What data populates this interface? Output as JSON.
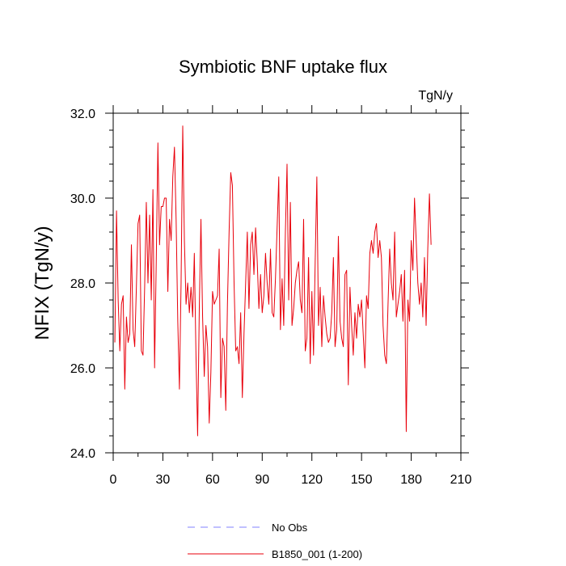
{
  "chart_data": {
    "type": "line",
    "title": "Symbiotic BNF uptake flux",
    "units": "TgN/y",
    "xlabel": "",
    "ylabel": "NFIX  (TgN/y)",
    "xlim": [
      0,
      210
    ],
    "ylim": [
      24.0,
      32.0
    ],
    "xticks": [
      0,
      30,
      60,
      90,
      120,
      150,
      180,
      210
    ],
    "xtick_labels": [
      "0",
      "30",
      "60",
      "90",
      "120",
      "150",
      "180",
      "210"
    ],
    "yticks": [
      24.0,
      26.0,
      28.0,
      30.0,
      32.0
    ],
    "ytick_labels": [
      "24.0",
      "26.0",
      "28.0",
      "30.0",
      "32.0"
    ],
    "grid": false,
    "legend_position": "bottom",
    "series": [
      {
        "name": "No Obs",
        "color": "#8080ff",
        "dash": "dashed",
        "x": [],
        "values": []
      },
      {
        "name": "B1850_001 (1-200)",
        "color": "#e8000b",
        "dash": "solid",
        "x_start": 1,
        "x_step": 1,
        "values": [
          26.6,
          29.7,
          27.6,
          26.4,
          27.5,
          27.7,
          25.5,
          27.2,
          26.6,
          26.8,
          28.9,
          26.9,
          26.5,
          27.9,
          29.4,
          29.6,
          26.4,
          26.3,
          27.9,
          29.9,
          28.0,
          29.6,
          27.6,
          30.2,
          26.0,
          28.5,
          31.3,
          28.9,
          29.8,
          29.8,
          30.0,
          30.0,
          27.8,
          29.5,
          29.0,
          30.5,
          31.2,
          29.5,
          27.1,
          25.5,
          28.0,
          31.7,
          29.0,
          27.5,
          28.0,
          27.3,
          27.9,
          27.2,
          28.7,
          26.3,
          24.4,
          27.4,
          29.5,
          27.2,
          25.8,
          27.0,
          26.5,
          24.7,
          25.9,
          27.8,
          27.5,
          27.6,
          27.7,
          28.8,
          25.3,
          26.7,
          26.5,
          25.0,
          27.5,
          29.2,
          30.6,
          30.3,
          28.0,
          26.4,
          26.5,
          26.1,
          27.3,
          25.3,
          26.8,
          28.0,
          29.2,
          27.4,
          28.9,
          29.2,
          28.2,
          29.3,
          28.5,
          27.4,
          28.2,
          27.3,
          27.7,
          28.7,
          28.0,
          27.5,
          28.8,
          27.3,
          27.2,
          28.1,
          29.3,
          30.5,
          26.9,
          28.1,
          27.0,
          29.2,
          30.8,
          27.6,
          29.9,
          27.0,
          27.4,
          28.0,
          28.3,
          28.5,
          27.6,
          27.3,
          29.5,
          26.4,
          26.7,
          28.6,
          26.1,
          27.8,
          26.3,
          28.5,
          30.5,
          27.0,
          27.9,
          26.5,
          27.7,
          27.2,
          26.8,
          26.6,
          26.7,
          27.3,
          28.6,
          26.5,
          26.9,
          29.1,
          27.1,
          26.7,
          26.5,
          28.2,
          28.3,
          25.6,
          27.9,
          27.0,
          26.3,
          27.3,
          26.7,
          27.5,
          27.2,
          27.6,
          26.8,
          26.0,
          27.7,
          27.4,
          28.7,
          29.0,
          28.7,
          29.2,
          29.4,
          28.6,
          29.0,
          28.6,
          27.0,
          26.3,
          26.1,
          27.5,
          28.8,
          28.0,
          27.6,
          29.2,
          27.2,
          27.5,
          27.8,
          28.2,
          27.1,
          28.3,
          24.5,
          27.6,
          27.1,
          29.0,
          28.3,
          30.0,
          29.0,
          28.0,
          27.5,
          28.0,
          27.2,
          28.6,
          27.0,
          28.8,
          30.1,
          28.9
        ]
      }
    ]
  }
}
